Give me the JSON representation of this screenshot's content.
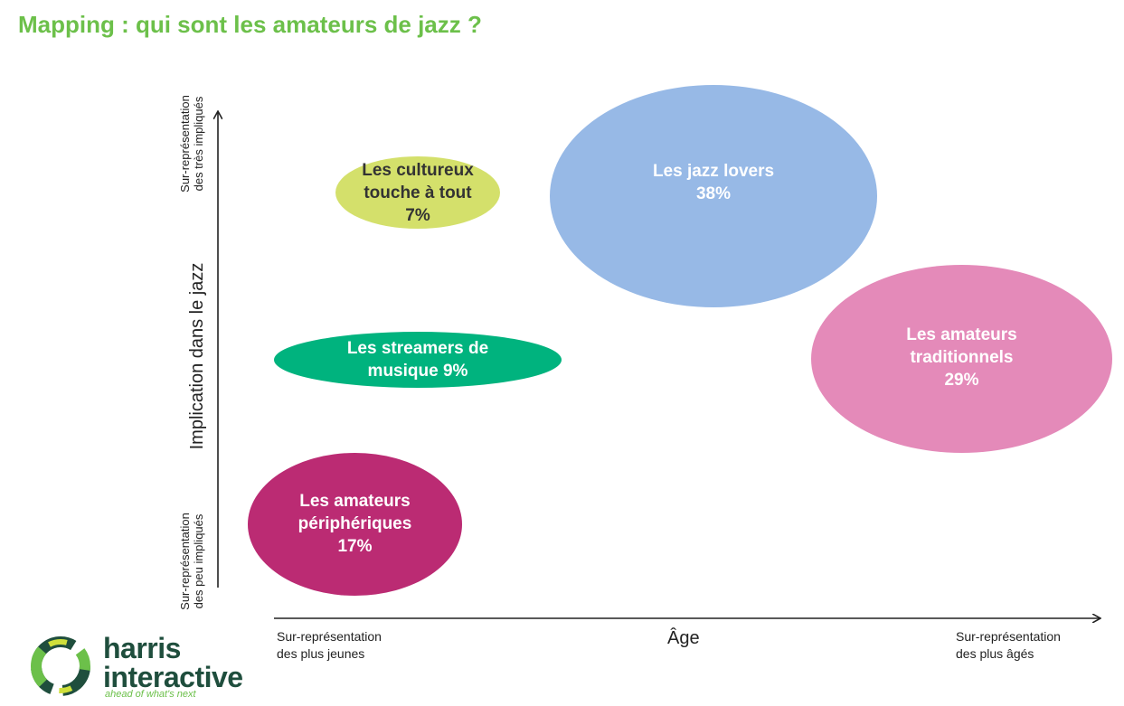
{
  "title": "Mapping : qui sont les amateurs de jazz ?",
  "axes": {
    "y_title": "Implication dans le jazz",
    "y_top_label": "Sur-représentation\ndes très impliqués",
    "y_bottom_label": "Sur-représentation\ndes peu impliqués",
    "x_title": "Âge",
    "x_left_label": "Sur-représentation\ndes plus jeunes",
    "x_right_label": "Sur-représentation\ndes plus âgés"
  },
  "segments": [
    {
      "label": "Les cultureux\ntouche à tout\n7%",
      "color": "#d4e06b",
      "text_color": "#333333"
    },
    {
      "label": "Les jazz lovers\n38%",
      "color": "#97b9e6",
      "text_color": "#ffffff"
    },
    {
      "label": "Les streamers de\nmusique 9%",
      "color": "#00b37e",
      "text_color": "#ffffff"
    },
    {
      "label": "Les amateurs\ntraditionnels\n29%",
      "color": "#e48ab9",
      "text_color": "#ffffff"
    },
    {
      "label": "Les amateurs\npériphériques\n17%",
      "color": "#bb2b73",
      "text_color": "#ffffff"
    }
  ],
  "logo": {
    "line1": "harris",
    "line2": "interactive",
    "tagline": "ahead of what's next"
  }
}
